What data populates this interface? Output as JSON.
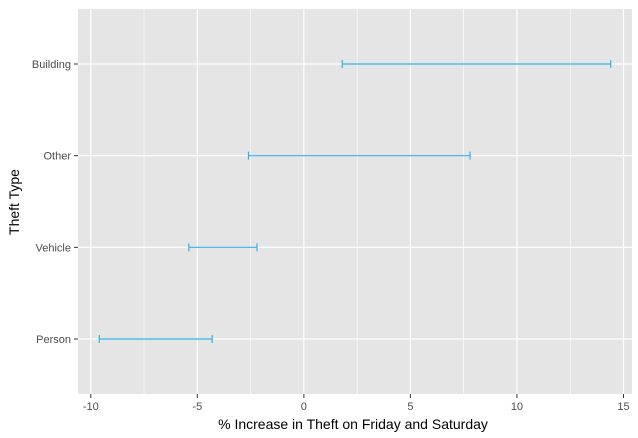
{
  "chart_data": {
    "type": "errorbar",
    "orientation": "horizontal",
    "xlabel": "% Increase in Theft on Friday and Saturday",
    "ylabel": "Theft Type",
    "xlim": [
      -10.6,
      15.4
    ],
    "xticks": [
      -10,
      -5,
      0,
      5,
      10,
      15
    ],
    "xtick_labels": [
      "-10",
      "-5",
      "0",
      "5",
      "10",
      "15"
    ],
    "categories": [
      "Building",
      "Other",
      "Vehicle",
      "Person"
    ],
    "intervals": [
      {
        "category": "Building",
        "low": 1.8,
        "high": 14.4
      },
      {
        "category": "Other",
        "low": -2.6,
        "high": 7.8
      },
      {
        "category": "Vehicle",
        "low": -5.4,
        "high": -2.2
      },
      {
        "category": "Person",
        "low": -9.6,
        "high": -4.3
      }
    ],
    "grid": true,
    "legend": "none",
    "colors": {
      "panel_background": "#e5e5e5",
      "grid": "#ffffff",
      "interval": "#35b0eb"
    }
  }
}
